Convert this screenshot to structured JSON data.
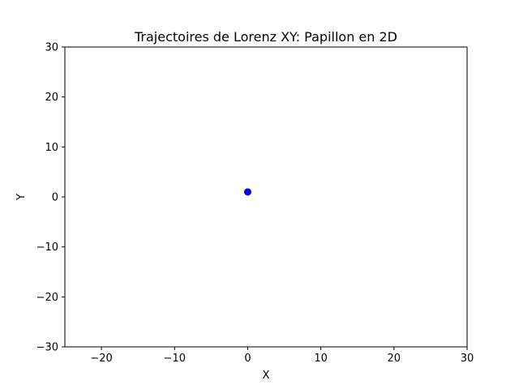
{
  "chart_data": {
    "type": "scatter",
    "title": "Trajectoires de Lorenz XY: Papillon en 2D",
    "xlabel": "X",
    "ylabel": "Y",
    "xlim": [
      -25,
      30
    ],
    "ylim": [
      -30,
      30
    ],
    "xticks": [
      -20,
      -10,
      0,
      10,
      20,
      30
    ],
    "yticks": [
      30,
      20,
      10,
      0,
      -10,
      -20,
      -30
    ],
    "grid": false,
    "series": [
      {
        "points": [
          {
            "x": 0,
            "y": 1
          }
        ],
        "color": "#0000ff",
        "marker": "circle"
      }
    ]
  }
}
